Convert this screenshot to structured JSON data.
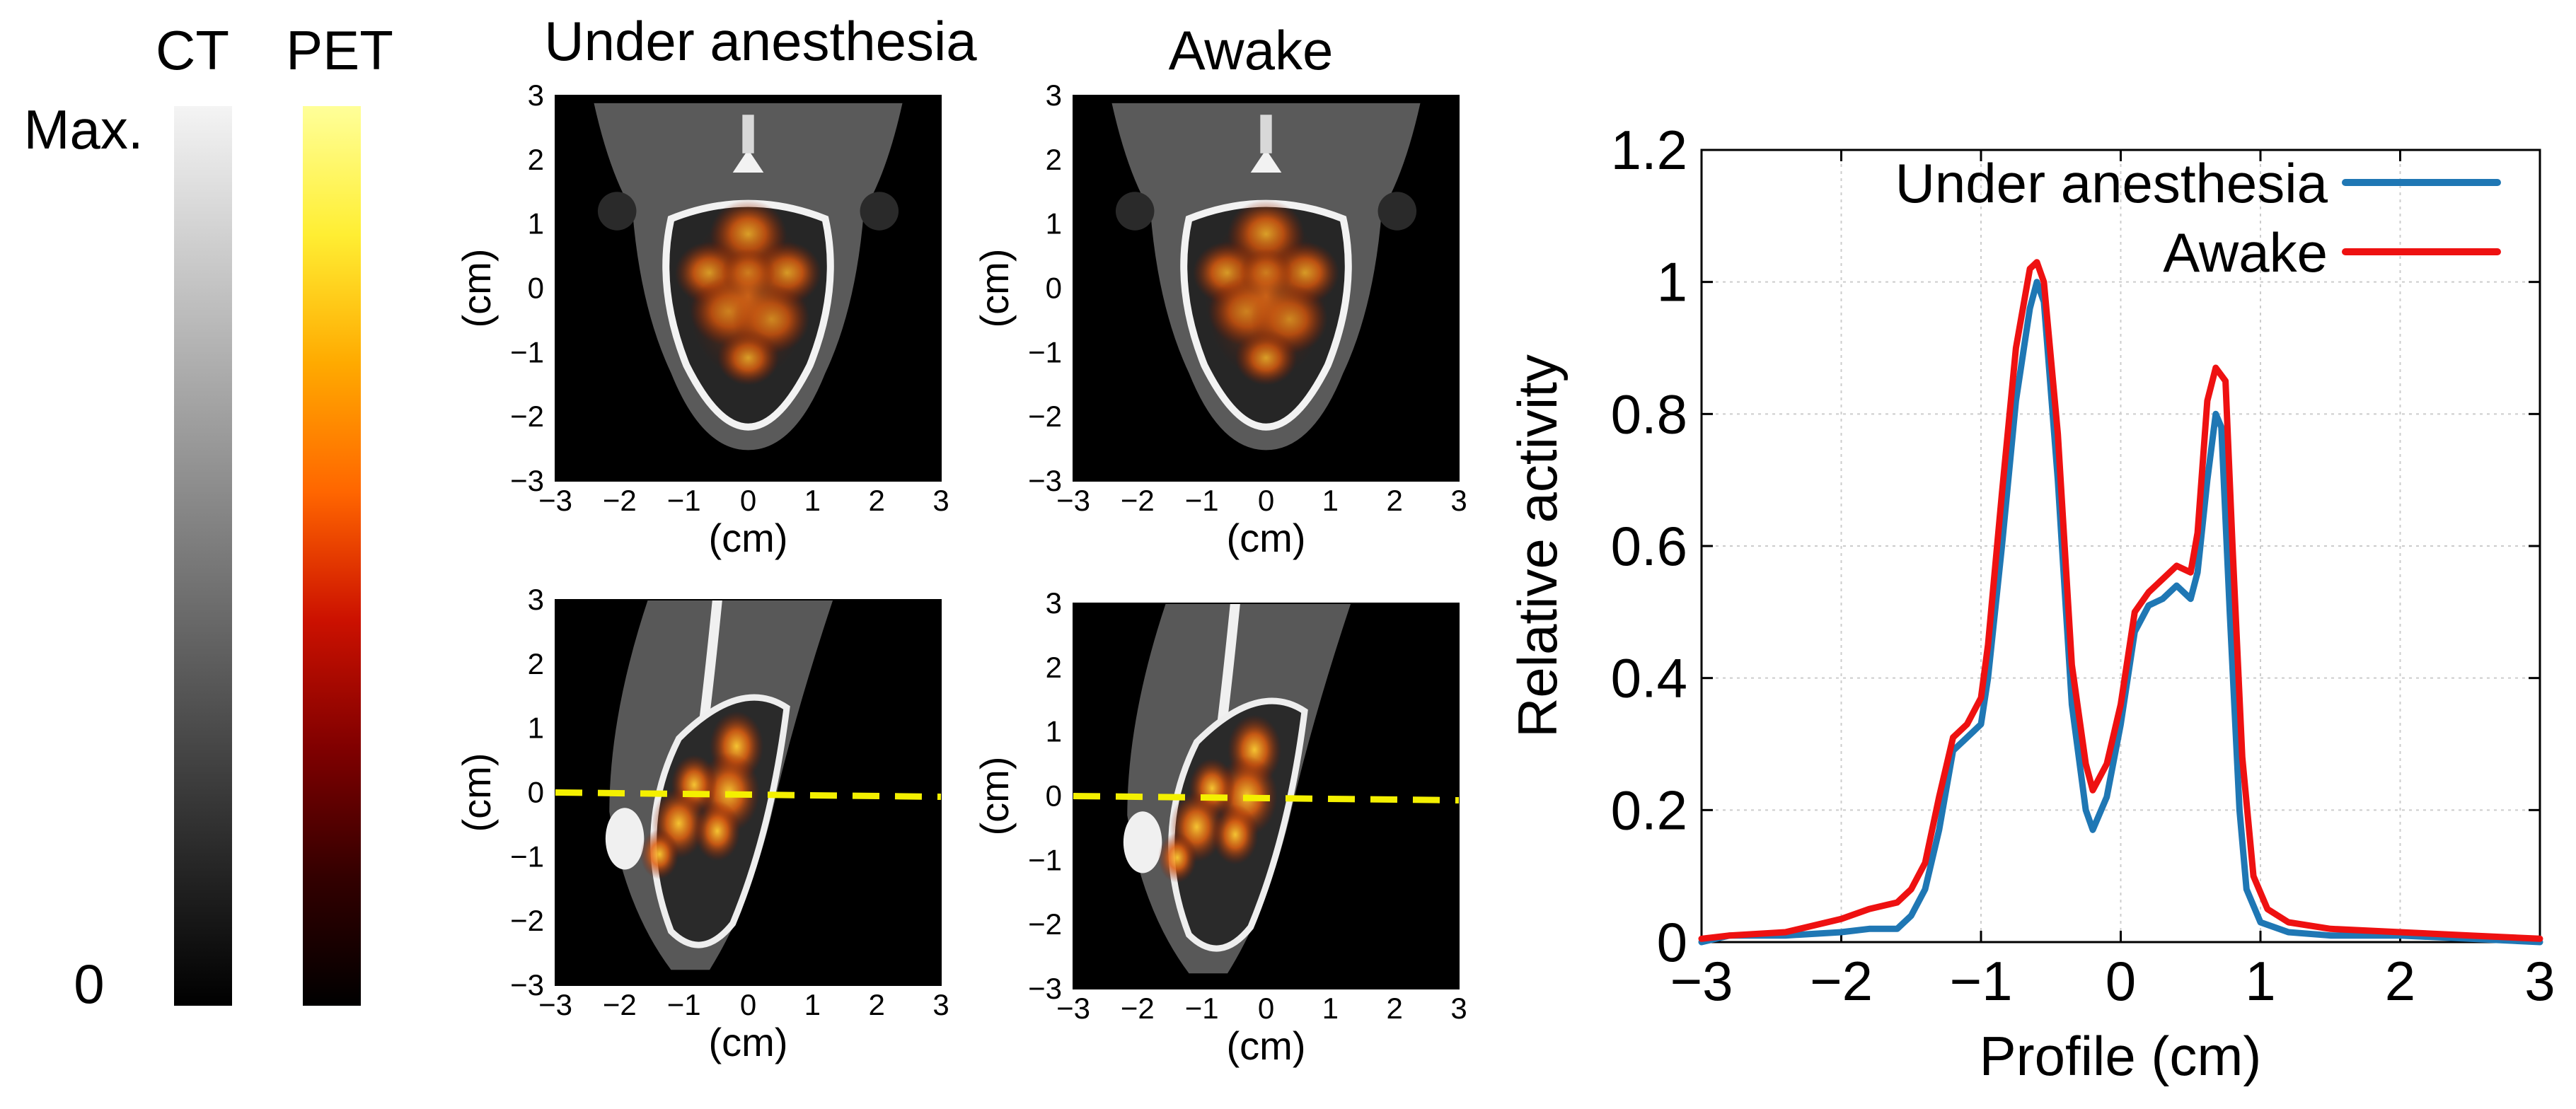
{
  "colorbars": {
    "ct_label": "CT",
    "pet_label": "PET",
    "max_label": "Max.",
    "zero_label": "0",
    "pet_colors": [
      "#ffff99",
      "#ffee33",
      "#ffaa00",
      "#ff6600",
      "#cc1100",
      "#800000",
      "#330000",
      "#000000"
    ]
  },
  "panels": {
    "col_titles": [
      "Under anesthesia",
      "Awake"
    ],
    "axis_unit_label": "(cm)",
    "ticks": [
      "−3",
      "−2",
      "−1",
      "0",
      "1",
      "2",
      "3"
    ]
  },
  "chart_data": {
    "type": "line",
    "xlabel": "Profile (cm)",
    "ylabel": "Relative activity",
    "xlim": [
      -3,
      3
    ],
    "ylim": [
      0,
      1.2
    ],
    "x_ticks": [
      "−3",
      "−2",
      "−1",
      "0",
      "1",
      "2",
      "3"
    ],
    "y_ticks": [
      "0",
      "0.2",
      "0.4",
      "0.6",
      "0.8",
      "1",
      "1.2"
    ],
    "grid": true,
    "legend_position": "top-right",
    "series": [
      {
        "name": "Under anesthesia",
        "color": "#1f77b4",
        "points": [
          [
            -3,
            0.0
          ],
          [
            -2.8,
            0.01
          ],
          [
            -2.4,
            0.01
          ],
          [
            -2.0,
            0.015
          ],
          [
            -1.8,
            0.02
          ],
          [
            -1.6,
            0.02
          ],
          [
            -1.5,
            0.04
          ],
          [
            -1.4,
            0.08
          ],
          [
            -1.3,
            0.17
          ],
          [
            -1.2,
            0.29
          ],
          [
            -1.1,
            0.31
          ],
          [
            -1.0,
            0.33
          ],
          [
            -0.95,
            0.4
          ],
          [
            -0.85,
            0.6
          ],
          [
            -0.75,
            0.82
          ],
          [
            -0.65,
            0.96
          ],
          [
            -0.6,
            1.0
          ],
          [
            -0.55,
            0.97
          ],
          [
            -0.45,
            0.7
          ],
          [
            -0.35,
            0.36
          ],
          [
            -0.25,
            0.2
          ],
          [
            -0.2,
            0.17
          ],
          [
            -0.1,
            0.22
          ],
          [
            0.0,
            0.33
          ],
          [
            0.1,
            0.47
          ],
          [
            0.2,
            0.51
          ],
          [
            0.3,
            0.52
          ],
          [
            0.4,
            0.54
          ],
          [
            0.5,
            0.52
          ],
          [
            0.55,
            0.56
          ],
          [
            0.62,
            0.7
          ],
          [
            0.68,
            0.8
          ],
          [
            0.72,
            0.78
          ],
          [
            0.78,
            0.5
          ],
          [
            0.85,
            0.2
          ],
          [
            0.9,
            0.08
          ],
          [
            1.0,
            0.03
          ],
          [
            1.2,
            0.015
          ],
          [
            1.5,
            0.01
          ],
          [
            2.0,
            0.01
          ],
          [
            2.5,
            0.005
          ],
          [
            3.0,
            0.0
          ]
        ]
      },
      {
        "name": "Awake",
        "color": "#ee1111",
        "points": [
          [
            -3,
            0.005
          ],
          [
            -2.8,
            0.01
          ],
          [
            -2.4,
            0.015
          ],
          [
            -2.0,
            0.035
          ],
          [
            -1.8,
            0.05
          ],
          [
            -1.6,
            0.06
          ],
          [
            -1.5,
            0.08
          ],
          [
            -1.4,
            0.12
          ],
          [
            -1.3,
            0.22
          ],
          [
            -1.2,
            0.31
          ],
          [
            -1.1,
            0.33
          ],
          [
            -1.0,
            0.37
          ],
          [
            -0.95,
            0.45
          ],
          [
            -0.85,
            0.68
          ],
          [
            -0.75,
            0.9
          ],
          [
            -0.65,
            1.02
          ],
          [
            -0.6,
            1.03
          ],
          [
            -0.55,
            1.0
          ],
          [
            -0.45,
            0.77
          ],
          [
            -0.35,
            0.42
          ],
          [
            -0.25,
            0.27
          ],
          [
            -0.2,
            0.23
          ],
          [
            -0.1,
            0.27
          ],
          [
            0.0,
            0.36
          ],
          [
            0.1,
            0.5
          ],
          [
            0.2,
            0.53
          ],
          [
            0.3,
            0.55
          ],
          [
            0.4,
            0.57
          ],
          [
            0.5,
            0.56
          ],
          [
            0.55,
            0.62
          ],
          [
            0.62,
            0.82
          ],
          [
            0.68,
            0.87
          ],
          [
            0.75,
            0.85
          ],
          [
            0.8,
            0.6
          ],
          [
            0.87,
            0.28
          ],
          [
            0.95,
            0.1
          ],
          [
            1.05,
            0.05
          ],
          [
            1.2,
            0.03
          ],
          [
            1.5,
            0.02
          ],
          [
            2.0,
            0.015
          ],
          [
            2.5,
            0.01
          ],
          [
            3.0,
            0.005
          ]
        ]
      }
    ]
  }
}
